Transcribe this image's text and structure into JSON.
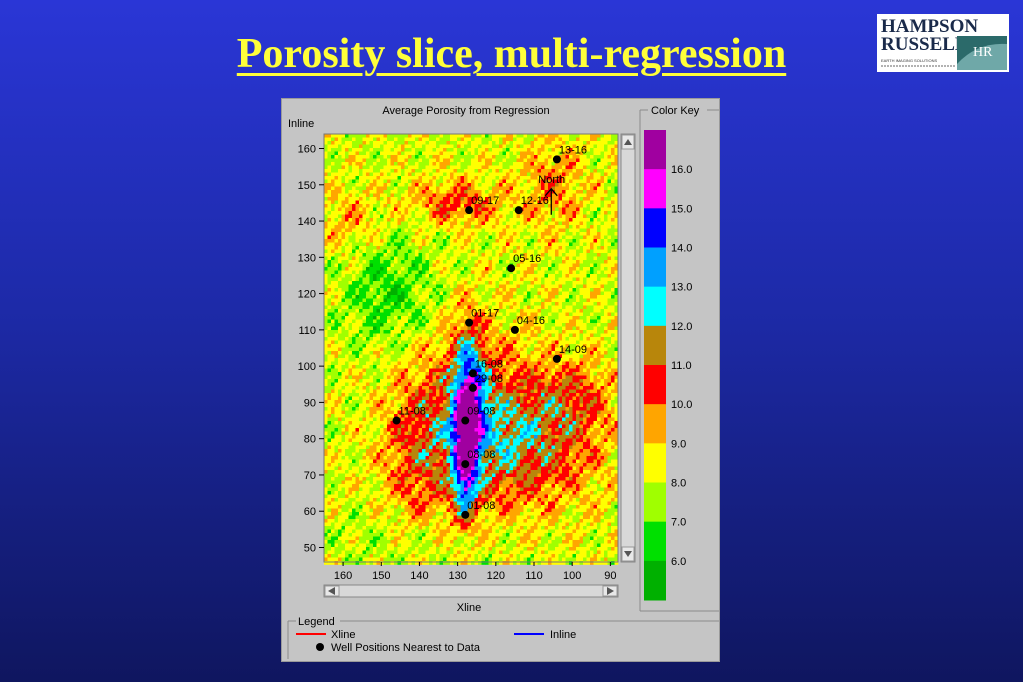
{
  "slide": {
    "title": "Porosity slice, multi-regression"
  },
  "logo": {
    "line1": "HAMPSON",
    "line2": "RUSSELL",
    "mark": "HR",
    "tagline": "EARTH IMAGING SOLUTIONS"
  },
  "chart_data": {
    "type": "heatmap",
    "title": "Average Porosity from Regression",
    "xlabel": "Xline",
    "ylabel": "Inline",
    "xlim": [
      165,
      88
    ],
    "ylim": [
      46,
      164
    ],
    "x_ticks": [
      160,
      150,
      140,
      130,
      120,
      110,
      100,
      90
    ],
    "y_ticks": [
      160,
      150,
      140,
      130,
      120,
      110,
      100,
      90,
      80,
      70,
      60,
      50
    ],
    "north_label": "North",
    "color_key": {
      "title": "Color Key",
      "labels": [
        "16.0",
        "15.0",
        "14.0",
        "13.0",
        "12.0",
        "11.0",
        "10.0",
        "9.0",
        "8.0",
        "7.0",
        "6.0"
      ],
      "colors": [
        "#a000a0",
        "#ff00ff",
        "#0000ff",
        "#00a0ff",
        "#00ffff",
        "#b8860b",
        "#ff0000",
        "#ffa500",
        "#ffff00",
        "#a0ff00",
        "#00e000",
        "#00b000"
      ]
    },
    "wells": [
      {
        "name": "13-16",
        "x": 104,
        "y": 157
      },
      {
        "name": "09-17",
        "x": 127,
        "y": 143
      },
      {
        "name": "12-16",
        "x": 114,
        "y": 143
      },
      {
        "name": "05-16",
        "x": 116,
        "y": 127
      },
      {
        "name": "01-17",
        "x": 127,
        "y": 112
      },
      {
        "name": "04-16",
        "x": 115,
        "y": 110
      },
      {
        "name": "14-09",
        "x": 104,
        "y": 102
      },
      {
        "name": "16-08",
        "x": 126,
        "y": 98
      },
      {
        "name": "29-08",
        "x": 126,
        "y": 94
      },
      {
        "name": "11-08",
        "x": 146,
        "y": 85
      },
      {
        "name": "09-08",
        "x": 128,
        "y": 85
      },
      {
        "name": "08-08",
        "x": 128,
        "y": 73
      },
      {
        "name": "01-08",
        "x": 128,
        "y": 59
      }
    ],
    "legend": {
      "title": "Legend",
      "xline_label": "Xline",
      "inline_label": "Inline",
      "wells_label": "Well Positions Nearest to Data",
      "xline_color": "#ff0000",
      "inline_color": "#0000ff"
    }
  }
}
